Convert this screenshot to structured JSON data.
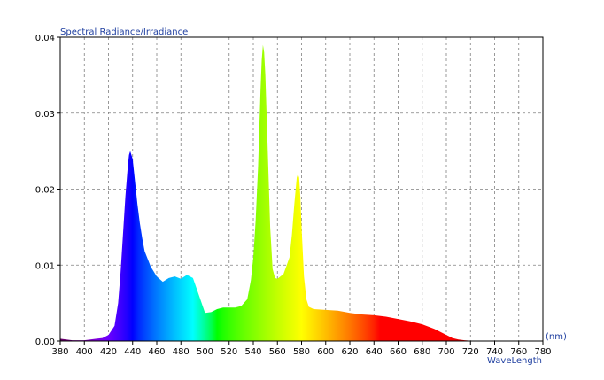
{
  "chart_data": {
    "type": "area",
    "ylabel": "Spectral Radiance/Irradiance",
    "xlabel": "WaveLength",
    "x_unit": "(nm)",
    "xlim": [
      380,
      780
    ],
    "ylim": [
      0,
      0.04
    ],
    "x_ticks": [
      "380",
      "400",
      "420",
      "440",
      "460",
      "480",
      "500",
      "520",
      "540",
      "560",
      "580",
      "600",
      "620",
      "640",
      "660",
      "680",
      "700",
      "720",
      "740",
      "760",
      "780"
    ],
    "y_ticks": [
      "0.00",
      "0.01",
      "0.02",
      "0.03",
      "0.04"
    ],
    "grid": true,
    "colors": {
      "axis_text": "#1f3fa0",
      "grid": "#808080"
    },
    "series": [
      {
        "x": [
          380,
          385,
          390,
          395,
          400,
          405,
          410,
          415,
          420,
          425,
          428,
          430,
          432,
          434,
          436,
          437,
          438,
          439,
          440,
          442,
          444,
          446,
          448,
          450,
          455,
          460,
          465,
          470,
          475,
          480,
          485,
          490,
          495,
          500,
          505,
          510,
          515,
          520,
          525,
          530,
          535,
          538,
          540,
          542,
          544,
          545,
          546,
          547,
          548,
          549,
          550,
          552,
          554,
          556,
          558,
          560,
          565,
          570,
          572,
          574,
          576,
          577,
          578,
          579,
          580,
          582,
          584,
          586,
          590,
          600,
          610,
          620,
          630,
          640,
          650,
          660,
          670,
          680,
          690,
          700,
          705,
          710,
          715,
          720,
          730,
          740,
          760,
          780
        ],
        "y": [
          0.0003,
          0.0002,
          0.0001,
          0.0001,
          0.0001,
          0.0002,
          0.0003,
          0.0004,
          0.0008,
          0.002,
          0.005,
          0.009,
          0.014,
          0.019,
          0.023,
          0.0245,
          0.025,
          0.0245,
          0.024,
          0.021,
          0.018,
          0.0155,
          0.0135,
          0.0118,
          0.0098,
          0.0085,
          0.0078,
          0.0083,
          0.0085,
          0.0082,
          0.0087,
          0.0083,
          0.006,
          0.0037,
          0.0038,
          0.0042,
          0.0044,
          0.0044,
          0.0044,
          0.0046,
          0.0055,
          0.008,
          0.011,
          0.016,
          0.023,
          0.028,
          0.033,
          0.037,
          0.039,
          0.038,
          0.035,
          0.025,
          0.015,
          0.0095,
          0.0083,
          0.0082,
          0.0088,
          0.011,
          0.014,
          0.018,
          0.0215,
          0.022,
          0.0215,
          0.019,
          0.015,
          0.0085,
          0.0055,
          0.0045,
          0.0042,
          0.0041,
          0.004,
          0.0037,
          0.0035,
          0.0034,
          0.0032,
          0.0029,
          0.0026,
          0.0022,
          0.0016,
          0.0008,
          0.0004,
          0.0002,
          0.0001,
          5e-05,
          0,
          0,
          0,
          0
        ]
      }
    ]
  }
}
